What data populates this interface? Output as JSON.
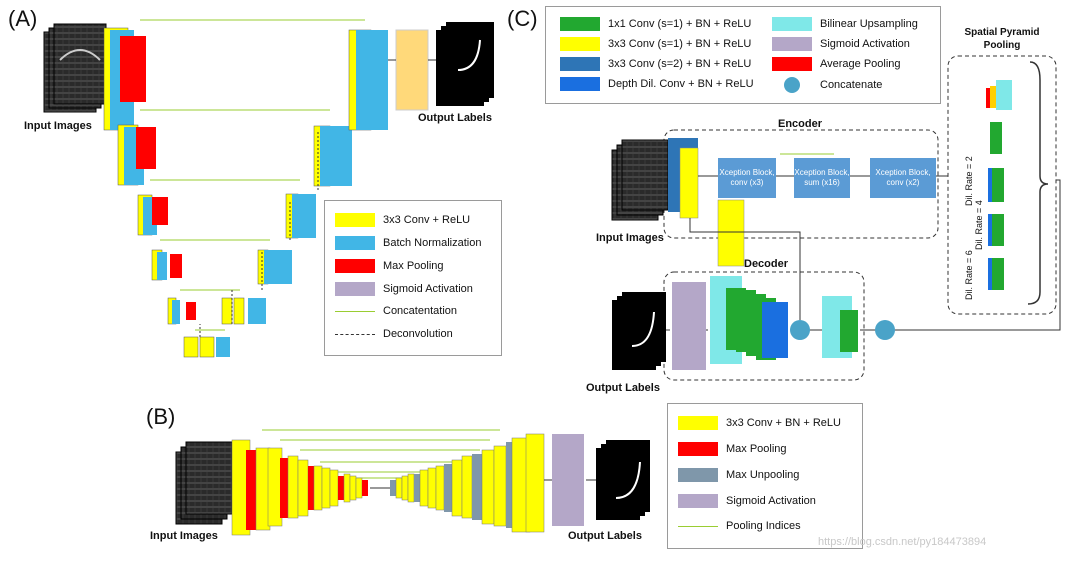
{
  "panels": {
    "a": "(A)",
    "b": "(B)",
    "c": "(C)"
  },
  "captions": {
    "a_input": "Input Images",
    "a_output": "Output Labels",
    "b_input": "Input Images",
    "b_output": "Output Labels",
    "c_input": "Input Images",
    "c_output": "Output Labels"
  },
  "legend_a": [
    {
      "label": "3x3 Conv + ReLU",
      "kind": "swatch",
      "color": "#ffff00"
    },
    {
      "label": "Batch Normalization",
      "kind": "swatch",
      "color": "#41b6e6"
    },
    {
      "label": "Max Pooling",
      "kind": "swatch",
      "color": "#ff0000"
    },
    {
      "label": "Sigmoid Activation",
      "kind": "swatch",
      "color": "#b4a7c8"
    },
    {
      "label": "Concatentation",
      "kind": "line",
      "color": "#9acd32"
    },
    {
      "label": "Deconvolution",
      "kind": "dash",
      "color": "#333333"
    }
  ],
  "legend_b": [
    {
      "label": "3x3 Conv + BN + ReLU",
      "kind": "swatch",
      "color": "#ffff00"
    },
    {
      "label": "Max Pooling",
      "kind": "swatch",
      "color": "#ff0000"
    },
    {
      "label": "Max Unpooling",
      "kind": "swatch",
      "color": "#7f97aa"
    },
    {
      "label": "Sigmoid Activation",
      "kind": "swatch",
      "color": "#b4a7c8"
    },
    {
      "label": "Pooling Indices",
      "kind": "line",
      "color": "#9acd32"
    }
  ],
  "legend_c": [
    {
      "label": "1x1 Conv (s=1) + BN + ReLU",
      "kind": "swatch",
      "color": "#22a830"
    },
    {
      "label": "3x3 Conv (s=1) + BN + ReLU",
      "kind": "swatch",
      "color": "#ffff00"
    },
    {
      "label": "3x3 Conv (s=2) + BN + ReLU",
      "kind": "swatch",
      "color": "#2e75b6"
    },
    {
      "label": "Depth Dil. Conv + BN + ReLU",
      "kind": "swatch",
      "color": "#1a6fe0"
    },
    {
      "label": "Bilinear Upsampling",
      "kind": "swatch",
      "color": "#7fe8e8"
    },
    {
      "label": "Sigmoid Activation",
      "kind": "swatch",
      "color": "#b4a7c8"
    },
    {
      "label": "Average Pooling",
      "kind": "swatch",
      "color": "#ff0000"
    },
    {
      "label": "Concatenate",
      "kind": "circle",
      "color": "#4aa3c8"
    }
  ],
  "encoder": {
    "title": "Encoder",
    "blocks": [
      "Xception Block, conv (x3)",
      "Xception Block, sum (x16)",
      "Xception Block, conv (x2)"
    ]
  },
  "decoder": {
    "title": "Decoder"
  },
  "spp": {
    "title": "Spatial Pyramid Pooling",
    "rates": [
      "Dil. Rate = 2",
      "Dil. Rate = 4",
      "Dil. Rate = 6"
    ]
  },
  "watermark": "https://blog.csdn.net/py184473894"
}
